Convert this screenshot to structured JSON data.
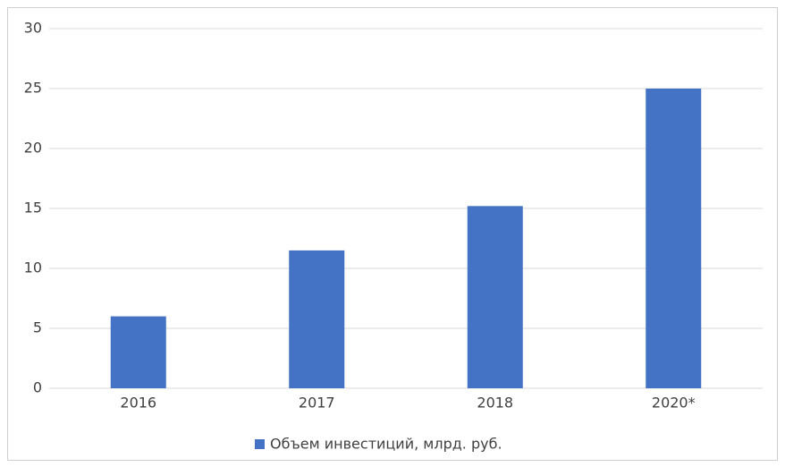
{
  "chart_data": {
    "type": "bar",
    "categories": [
      "2016",
      "2017",
      "2018",
      "2020*"
    ],
    "series": [
      {
        "name": "Объем инвестиций, млрд. руб.",
        "color": "#4472c4",
        "values": [
          6,
          11.5,
          15.2,
          25
        ]
      }
    ],
    "ylim": [
      0,
      30
    ],
    "yticks": [
      0,
      5,
      10,
      15,
      20,
      25,
      30
    ],
    "grid": true,
    "legend": "bottom"
  }
}
